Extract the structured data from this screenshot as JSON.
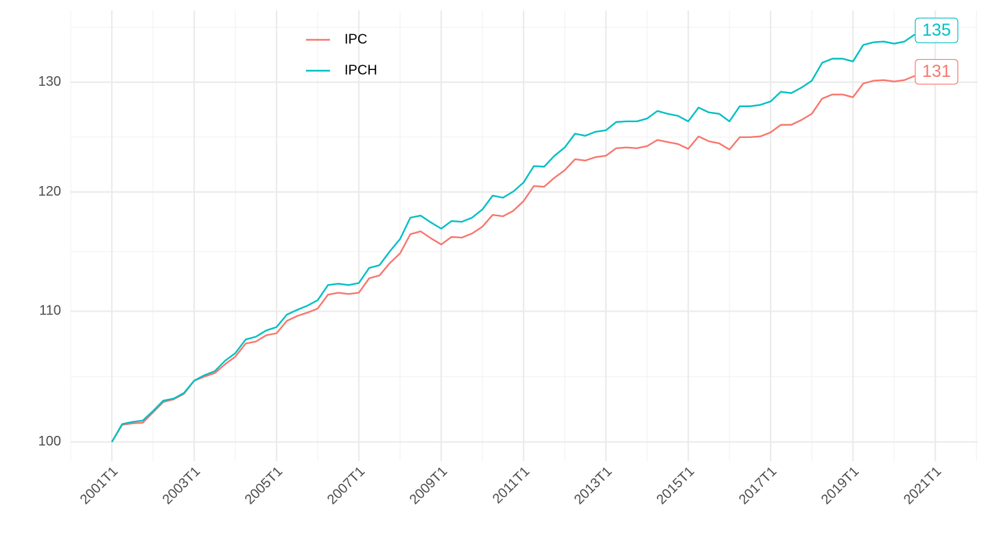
{
  "chart_data": {
    "type": "line",
    "x": [
      2001,
      2001.25,
      2001.5,
      2001.75,
      2002,
      2002.25,
      2002.5,
      2002.75,
      2003,
      2003.25,
      2003.5,
      2003.75,
      2004,
      2004.25,
      2004.5,
      2004.75,
      2005,
      2005.25,
      2005.5,
      2005.75,
      2006,
      2006.25,
      2006.5,
      2006.75,
      2007,
      2007.25,
      2007.5,
      2007.75,
      2008,
      2008.25,
      2008.5,
      2008.75,
      2009,
      2009.25,
      2009.5,
      2009.75,
      2010,
      2010.25,
      2010.5,
      2010.75,
      2011,
      2011.25,
      2011.5,
      2011.75,
      2012,
      2012.25,
      2012.5,
      2012.75,
      2013,
      2013.25,
      2013.5,
      2013.75,
      2014,
      2014.25,
      2014.5,
      2014.75,
      2015,
      2015.25,
      2015.5,
      2015.75,
      2016,
      2016.25,
      2016.5,
      2016.75,
      2017,
      2017.25,
      2017.5,
      2017.75,
      2018,
      2018.25,
      2018.5,
      2018.75,
      2019,
      2019.25,
      2019.5,
      2019.75,
      2020,
      2020.25,
      2020.5
    ],
    "series": [
      {
        "name": "IPC",
        "color": "#F8766D",
        "values": [
          100,
          101.26,
          101.36,
          101.41,
          102.18,
          102.95,
          103.16,
          103.57,
          104.57,
          104.88,
          105.15,
          105.83,
          106.42,
          107.44,
          107.6,
          108.09,
          108.25,
          109.23,
          109.62,
          109.89,
          110.22,
          111.34,
          111.5,
          111.39,
          111.5,
          112.68,
          112.91,
          113.93,
          114.74,
          116.36,
          116.6,
          116.01,
          115.49,
          116.13,
          116.07,
          116.42,
          117,
          118.01,
          117.89,
          118.36,
          119.2,
          120.52,
          120.46,
          121.25,
          121.92,
          122.9,
          122.78,
          123.09,
          123.21,
          123.89,
          123.96,
          123.89,
          124.08,
          124.64,
          124.45,
          124.27,
          123.83,
          124.96,
          124.52,
          124.33,
          123.77,
          124.89,
          124.89,
          124.96,
          125.33,
          126.02,
          126.02,
          126.47,
          127.04,
          128.45,
          128.84,
          128.84,
          128.58,
          129.88,
          130.14,
          130.2,
          130.07,
          130.2,
          130.6
        ],
        "value_labels": [
          null,
          null,
          null,
          null,
          null,
          null,
          null,
          null,
          null,
          null,
          null,
          null,
          null,
          null,
          null,
          null,
          null,
          null,
          null,
          null,
          null,
          null,
          null,
          null,
          null,
          null,
          null,
          null,
          null,
          null,
          null,
          null,
          null,
          null,
          null,
          null,
          null,
          null,
          null,
          null,
          null,
          null,
          null,
          null,
          null,
          null,
          null,
          null,
          null,
          null,
          null,
          null,
          null,
          null,
          null,
          null,
          null,
          null,
          null,
          null,
          null,
          null,
          null,
          null,
          null,
          null,
          null,
          null,
          null,
          null,
          null,
          null,
          null,
          null,
          null,
          null,
          null,
          null,
          "131"
        ]
      },
      {
        "name": "IPCH",
        "color": "#00BFC4",
        "values": [
          100,
          101.31,
          101.47,
          101.57,
          102.28,
          103.06,
          103.21,
          103.63,
          104.57,
          104.99,
          105.3,
          106.1,
          106.69,
          107.76,
          107.98,
          108.47,
          108.74,
          109.73,
          110.11,
          110.45,
          110.89,
          112.12,
          112.23,
          112.12,
          112.29,
          113.53,
          113.76,
          114.91,
          115.95,
          117.77,
          117.95,
          117.36,
          116.83,
          117.48,
          117.42,
          117.77,
          118.48,
          119.68,
          119.5,
          120.04,
          120.83,
          122.29,
          122.23,
          123.21,
          123.96,
          125.21,
          125.02,
          125.39,
          125.52,
          126.28,
          126.34,
          126.34,
          126.6,
          127.3,
          127.04,
          126.85,
          126.34,
          127.62,
          127.17,
          127.04,
          126.34,
          127.74,
          127.74,
          127.87,
          128.19,
          129.1,
          128.97,
          129.49,
          130.14,
          131.85,
          132.25,
          132.25,
          131.98,
          133.58,
          133.84,
          133.91,
          133.71,
          133.91,
          134.6
        ],
        "value_labels": [
          null,
          null,
          null,
          null,
          null,
          null,
          null,
          null,
          null,
          null,
          null,
          null,
          null,
          null,
          null,
          null,
          null,
          null,
          null,
          null,
          null,
          null,
          null,
          null,
          null,
          null,
          null,
          null,
          null,
          null,
          null,
          null,
          null,
          null,
          null,
          null,
          null,
          null,
          null,
          null,
          null,
          null,
          null,
          null,
          null,
          null,
          null,
          null,
          null,
          null,
          null,
          null,
          null,
          null,
          null,
          null,
          null,
          null,
          null,
          null,
          null,
          null,
          null,
          null,
          null,
          null,
          null,
          null,
          null,
          null,
          null,
          null,
          null,
          null,
          null,
          null,
          null,
          null,
          "135"
        ]
      }
    ],
    "xlim": [
      2000,
      2022.03
    ],
    "xticks": [
      {
        "value": 2001,
        "label": "2001T1"
      },
      {
        "value": 2003,
        "label": "2003T1"
      },
      {
        "value": 2005,
        "label": "2005T1"
      },
      {
        "value": 2007,
        "label": "2007T1"
      },
      {
        "value": 2009,
        "label": "2009T1"
      },
      {
        "value": 2011,
        "label": "2011T1"
      },
      {
        "value": 2013,
        "label": "2013T1"
      },
      {
        "value": 2015,
        "label": "2015T1"
      },
      {
        "value": 2017,
        "label": "2017T1"
      },
      {
        "value": 2019,
        "label": "2019T1"
      },
      {
        "value": 2021,
        "label": "2021T1"
      }
    ],
    "ylim": [
      98.6,
      137
    ],
    "yticks": [
      100,
      110,
      120,
      130
    ],
    "log_y": true,
    "grid": true,
    "legend": "top-left"
  }
}
